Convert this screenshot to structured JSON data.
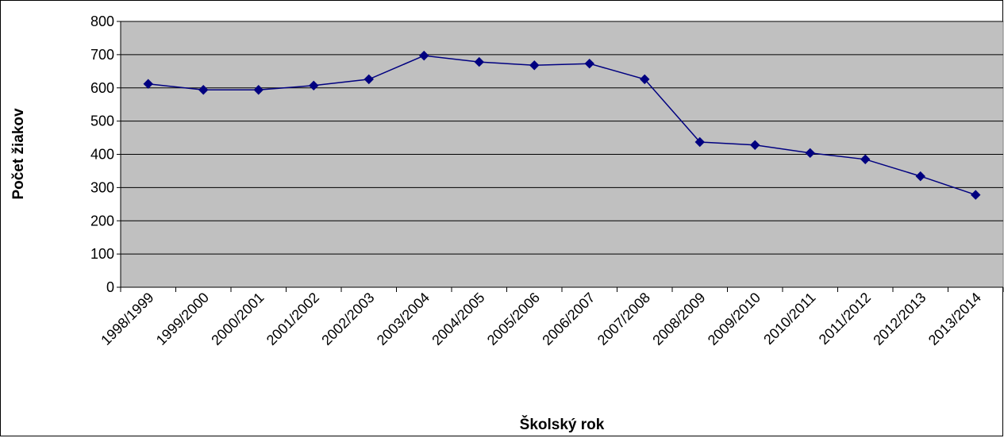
{
  "chart_data": {
    "type": "line",
    "title": "",
    "xlabel": "Školský rok",
    "ylabel": "Počet žiakov",
    "categories": [
      "1998/1999",
      "1999/2000",
      "2000/2001",
      "2001/2002",
      "2002/2003",
      "2003/2004",
      "2004/2005",
      "2005/2006",
      "2006/2007",
      "2007/2008",
      "2008/2009",
      "2009/2010",
      "2010/2011",
      "2011/2012",
      "2012/2013",
      "2013/2014"
    ],
    "series": [
      {
        "values": [
          612,
          594,
          594,
          607,
          626,
          697,
          678,
          668,
          673,
          626,
          437,
          428,
          404,
          385,
          334,
          278
        ],
        "color": "#000080"
      }
    ],
    "ylim": [
      0,
      800
    ],
    "yticks": [
      "0",
      "100",
      "200",
      "300",
      "400",
      "500",
      "600",
      "700",
      "800"
    ],
    "grid": true,
    "legend": "none",
    "plot_background": "#c0c0c0"
  }
}
